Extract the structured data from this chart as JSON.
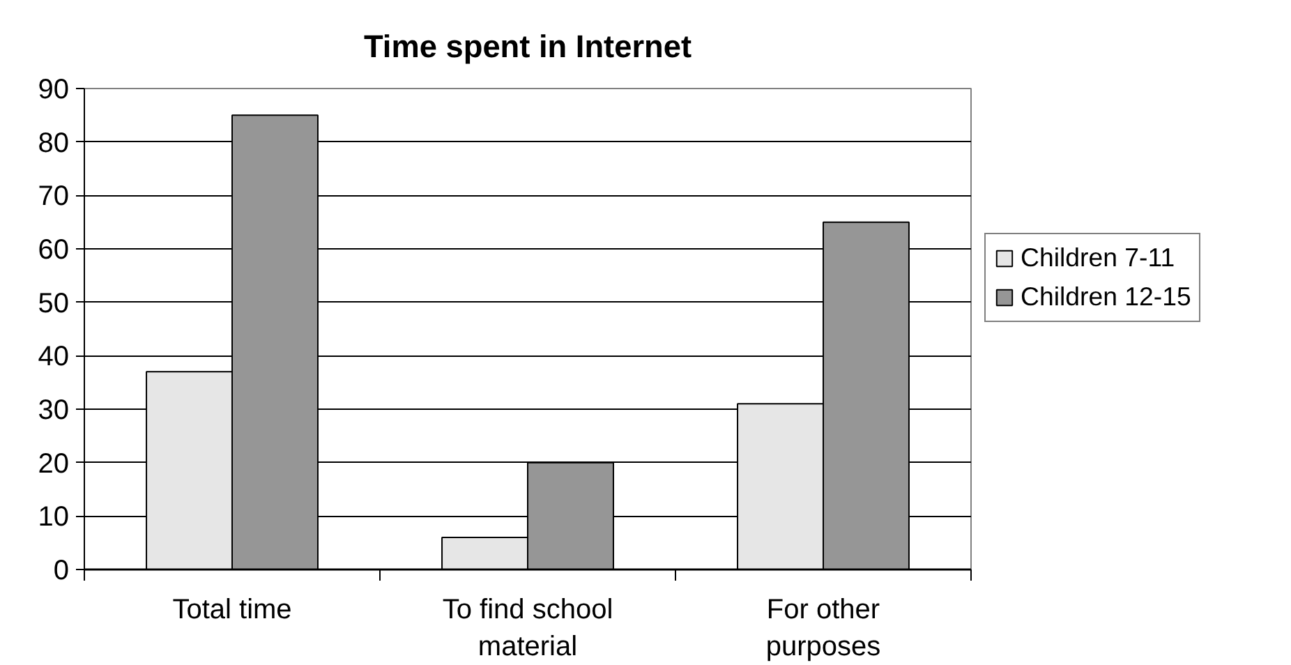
{
  "chart_data": {
    "type": "bar",
    "title": "Time spent in Internet",
    "categories": [
      "Total time",
      "To find school material",
      "For other purposes"
    ],
    "series": [
      {
        "name": "Children 7-11",
        "color": "#e6e6e6",
        "values": [
          37,
          6,
          31
        ]
      },
      {
        "name": "Children 12-15",
        "color": "#969696",
        "values": [
          85,
          20,
          65
        ]
      }
    ],
    "ylim": [
      0,
      90
    ],
    "yticks": [
      0,
      10,
      20,
      30,
      40,
      50,
      60,
      70,
      80,
      90
    ],
    "grid": "y",
    "legend": "right"
  }
}
